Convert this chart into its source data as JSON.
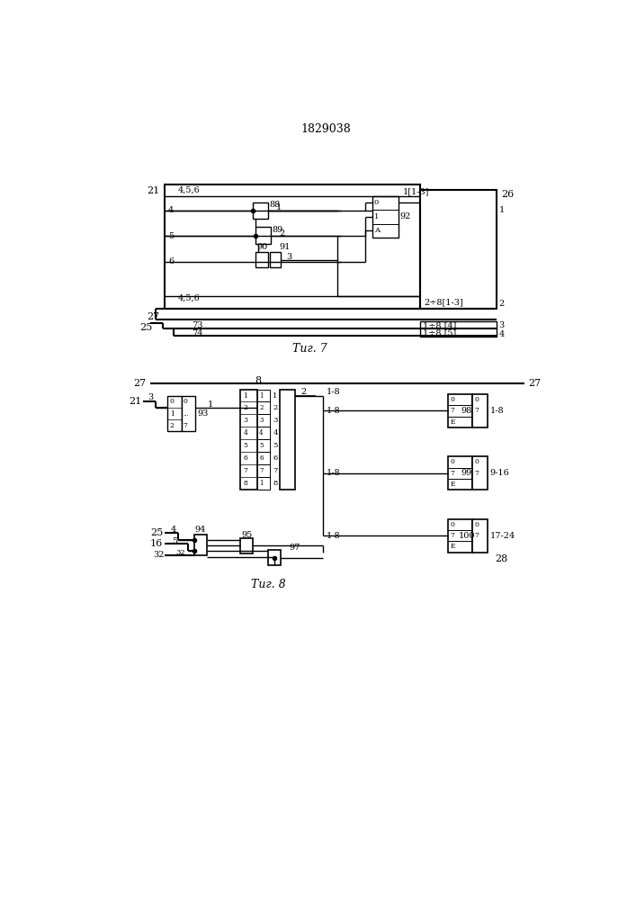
{
  "title": "1829038",
  "fig7_caption": "Τиг. 7",
  "fig8_caption": "Τиг. 8"
}
